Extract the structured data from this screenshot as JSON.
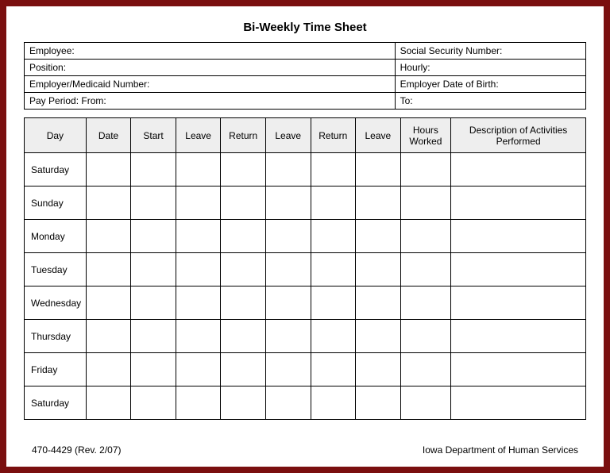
{
  "title": "Bi-Weekly Time Sheet",
  "frame_color": "#7a0f0f",
  "header_bg": "#eeeeee",
  "border_color": "#000000",
  "info_rows": [
    {
      "left": "Employee:",
      "right": "Social Security Number:"
    },
    {
      "left": "Position:",
      "right": "Hourly:"
    },
    {
      "left": "Employer/Medicaid Number:",
      "right": "Employer Date of Birth:"
    },
    {
      "left": "Pay Period:  From:",
      "right": "To:"
    }
  ],
  "columns": [
    {
      "label": "Day",
      "width": "11%"
    },
    {
      "label": "Date",
      "width": "8%"
    },
    {
      "label": "Start",
      "width": "8%"
    },
    {
      "label": "Leave",
      "width": "8%"
    },
    {
      "label": "Return",
      "width": "8%"
    },
    {
      "label": "Leave",
      "width": "8%"
    },
    {
      "label": "Return",
      "width": "8%"
    },
    {
      "label": "Leave",
      "width": "8%"
    },
    {
      "label": "Hours Worked",
      "width": "9%"
    },
    {
      "label": "Description of Activities Performed",
      "width": "24%"
    }
  ],
  "days": [
    "Saturday",
    "Sunday",
    "Monday",
    "Tuesday",
    "Wednesday",
    "Thursday",
    "Friday",
    "Saturday"
  ],
  "footer_left": "470-4429  (Rev. 2/07)",
  "footer_right": "Iowa Department of Human Services"
}
